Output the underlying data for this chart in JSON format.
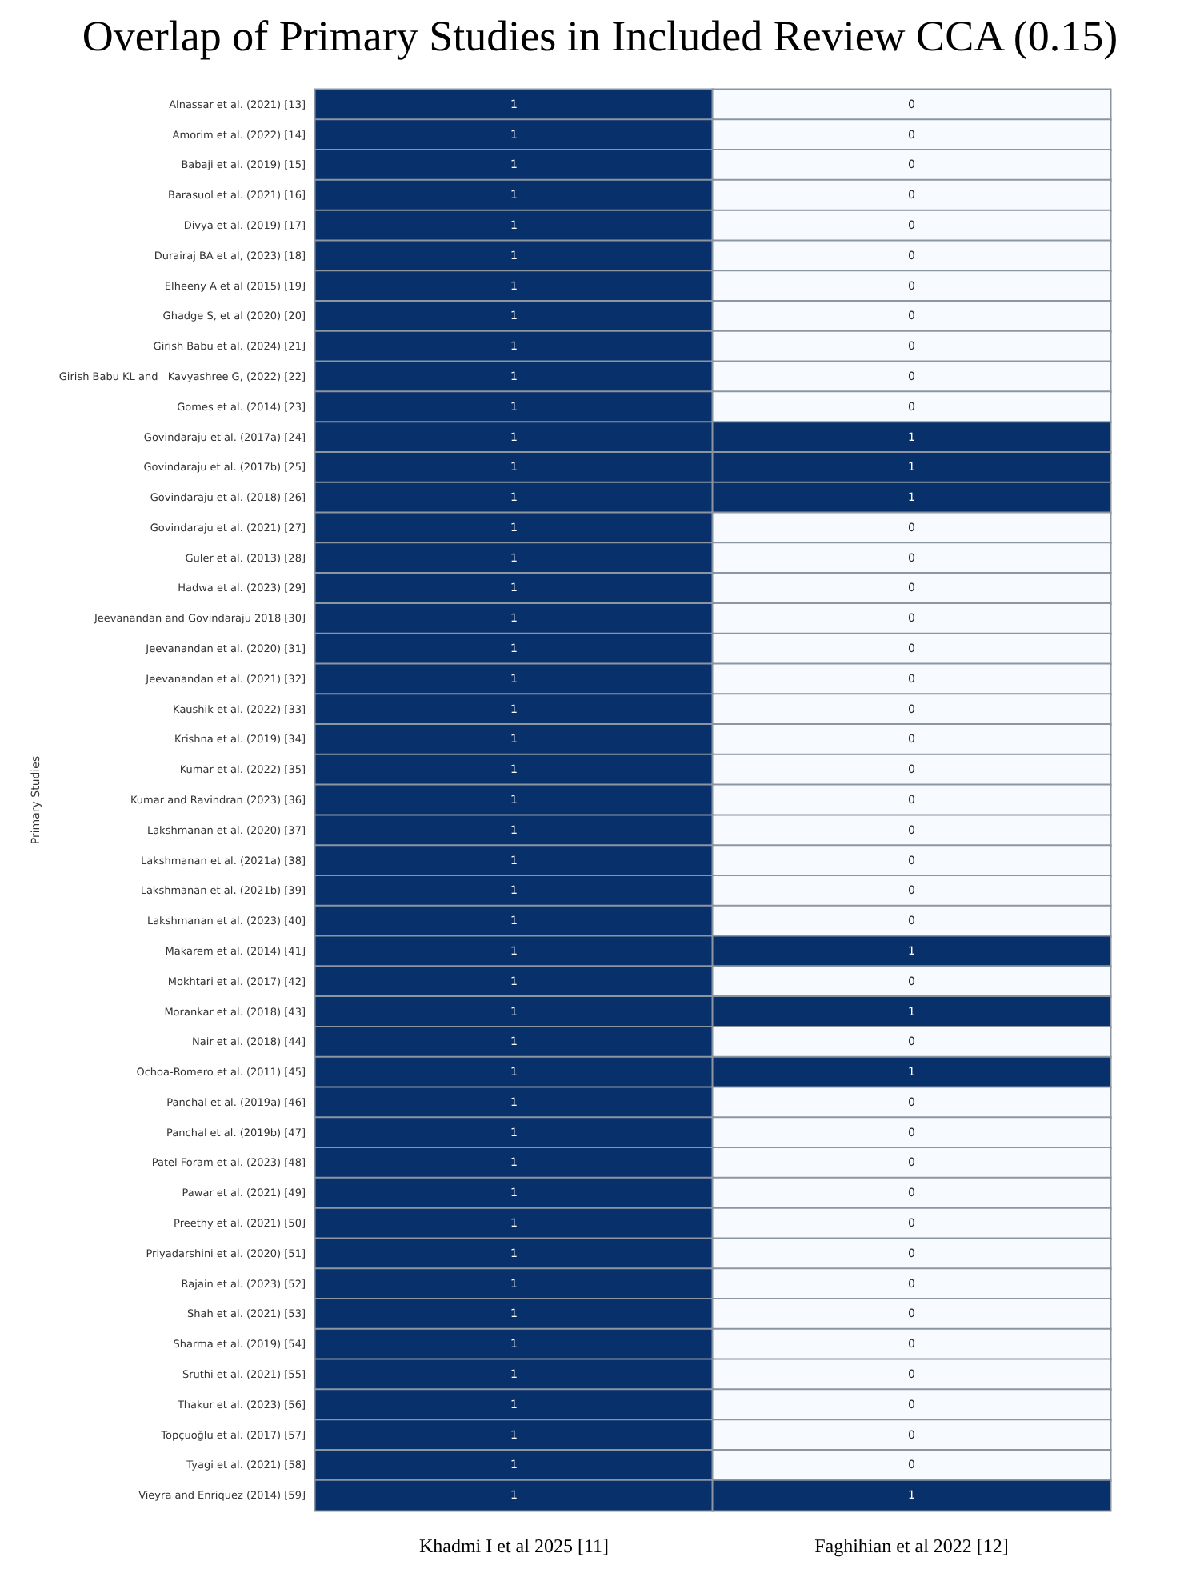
{
  "chart_data": {
    "type": "heatmap",
    "title": "Overlap of Primary Studies in Included Review CCA (0.15)",
    "ylabel": "Primary Studies",
    "data_labels": true,
    "categories": [
      "Khadmi I et al 2025 [11]",
      "Faghihian et al 2022 [12]"
    ],
    "y_categories": [
      "Alnassar et al. (2021) [13]",
      "Amorim et al. (2022) [14]",
      "Babaji et al. (2019) [15]",
      "Barasuol et al. (2021) [16]",
      "Divya et al. (2019) [17]",
      "Durairaj BA et al, (2023) [18]",
      "Elheeny A et al (2015) [19]",
      "Ghadge S, et al (2020) [20]",
      "Girish Babu et al. (2024) [21]",
      "Girish Babu KL and   Kavyashree G, (2022) [22]",
      "Gomes et al. (2014) [23]",
      "Govindaraju et al. (2017a) [24]",
      "Govindaraju et al. (2017b) [25]",
      "Govindaraju et al. (2018) [26]",
      "Govindaraju et al. (2021) [27]",
      "Guler et al. (2013) [28]",
      "Hadwa et al. (2023) [29]",
      "Jeevanandan and Govindaraju 2018 [30]",
      "Jeevanandan et al. (2020) [31]",
      "Jeevanandan et al. (2021) [32]",
      "Kaushik et al. (2022) [33]",
      "Krishna et al. (2019) [34]",
      "Kumar et al. (2022) [35]",
      "Kumar and Ravindran (2023) [36]",
      "Lakshmanan et al. (2020) [37]",
      "Lakshmanan et al. (2021a) [38]",
      "Lakshmanan et al. (2021b) [39]",
      "Lakshmanan et al. (2023) [40]",
      "Makarem et al. (2014) [41]",
      "Mokhtari et al. (2017) [42]",
      "Morankar et al. (2018) [43]",
      "Nair et al. (2018) [44]",
      "Ochoa-Romero et al. (2011) [45]",
      "Panchal et al. (2019a) [46]",
      "Panchal et al. (2019b) [47]",
      "Patel Foram et al. (2023) [48]",
      "Pawar et al. (2021) [49]",
      "Preethy et al. (2021) [50]",
      "Priyadarshini et al. (2020) [51]",
      "Rajain et al. (2023) [52]",
      "Shah et al. (2021) [53]",
      "Sharma et al. (2019) [54]",
      "Sruthi et al. (2021) [55]",
      "Thakur et al. (2023) [56]",
      "Topçuoğlu et al. (2017) [57]",
      "Tyagi et al. (2021) [58]",
      "Vieyra and Enriquez (2014) [59]"
    ],
    "cells": [
      [
        1,
        0
      ],
      [
        1,
        0
      ],
      [
        1,
        0
      ],
      [
        1,
        0
      ],
      [
        1,
        0
      ],
      [
        1,
        0
      ],
      [
        1,
        0
      ],
      [
        1,
        0
      ],
      [
        1,
        0
      ],
      [
        1,
        0
      ],
      [
        1,
        0
      ],
      [
        1,
        1
      ],
      [
        1,
        1
      ],
      [
        1,
        1
      ],
      [
        1,
        0
      ],
      [
        1,
        0
      ],
      [
        1,
        0
      ],
      [
        1,
        0
      ],
      [
        1,
        0
      ],
      [
        1,
        0
      ],
      [
        1,
        0
      ],
      [
        1,
        0
      ],
      [
        1,
        0
      ],
      [
        1,
        0
      ],
      [
        1,
        0
      ],
      [
        1,
        0
      ],
      [
        1,
        0
      ],
      [
        1,
        0
      ],
      [
        1,
        1
      ],
      [
        1,
        0
      ],
      [
        1,
        1
      ],
      [
        1,
        0
      ],
      [
        1,
        1
      ],
      [
        1,
        0
      ],
      [
        1,
        0
      ],
      [
        1,
        0
      ],
      [
        1,
        0
      ],
      [
        1,
        0
      ],
      [
        1,
        0
      ],
      [
        1,
        0
      ],
      [
        1,
        0
      ],
      [
        1,
        0
      ],
      [
        1,
        0
      ],
      [
        1,
        0
      ],
      [
        1,
        0
      ],
      [
        1,
        0
      ],
      [
        1,
        1
      ]
    ]
  }
}
